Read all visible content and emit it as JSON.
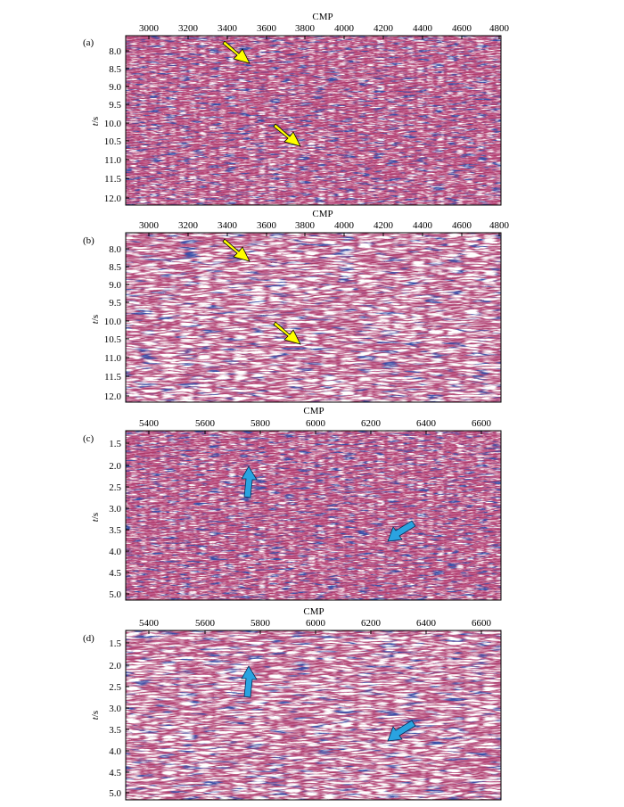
{
  "figure": {
    "panels": [
      {
        "label": "(a)",
        "x_axis": {
          "title": "CMP",
          "ticks": [
            "3000",
            "3200",
            "3400",
            "3600",
            "3800",
            "4000",
            "4200",
            "4400",
            "4600",
            "4800"
          ]
        },
        "y_axis": {
          "title": "t/s",
          "ticks": [
            "8.0",
            "8.5",
            "9.0",
            "9.5",
            "10.0",
            "10.5",
            "11.0",
            "11.5",
            "12.0"
          ]
        },
        "arrow_color": "#ffff00",
        "arrows": [
          {
            "name": "upper"
          },
          {
            "name": "lower"
          }
        ]
      },
      {
        "label": "(b)",
        "x_axis": {
          "title": "CMP",
          "ticks": [
            "3000",
            "3200",
            "3400",
            "3600",
            "3800",
            "4000",
            "4200",
            "4400",
            "4600",
            "4800"
          ]
        },
        "y_axis": {
          "title": "t/s",
          "ticks": [
            "8.0",
            "8.5",
            "9.0",
            "9.5",
            "10.0",
            "10.5",
            "11.0",
            "11.5",
            "12.0"
          ]
        },
        "arrow_color": "#ffff00",
        "arrows": [
          {
            "name": "upper"
          },
          {
            "name": "lower"
          }
        ]
      },
      {
        "label": "(c)",
        "x_axis": {
          "title": "CMP",
          "ticks": [
            "5400",
            "5600",
            "5800",
            "6000",
            "6200",
            "6400",
            "6600"
          ]
        },
        "y_axis": {
          "title": "t/s",
          "ticks": [
            "1.5",
            "2.0",
            "2.5",
            "3.0",
            "3.5",
            "4.0",
            "4.5",
            "5.0"
          ]
        },
        "arrow_color": "#2aa3e0",
        "arrows": [
          {
            "name": "up"
          },
          {
            "name": "down-left"
          }
        ]
      },
      {
        "label": "(d)",
        "x_axis": {
          "title": "CMP",
          "ticks": [
            "5400",
            "5600",
            "5800",
            "6000",
            "6200",
            "6400",
            "6600"
          ]
        },
        "y_axis": {
          "title": "t/s",
          "ticks": [
            "1.5",
            "2.0",
            "2.5",
            "3.0",
            "3.5",
            "4.0",
            "4.5",
            "5.0"
          ]
        },
        "arrow_color": "#2aa3e0",
        "arrows": [
          {
            "name": "up"
          },
          {
            "name": "down-left"
          }
        ]
      }
    ],
    "colors": {
      "seismic_red": "#b8325f",
      "seismic_blue": "#3b4fa8",
      "seismic_bg": "#c86a96"
    }
  }
}
